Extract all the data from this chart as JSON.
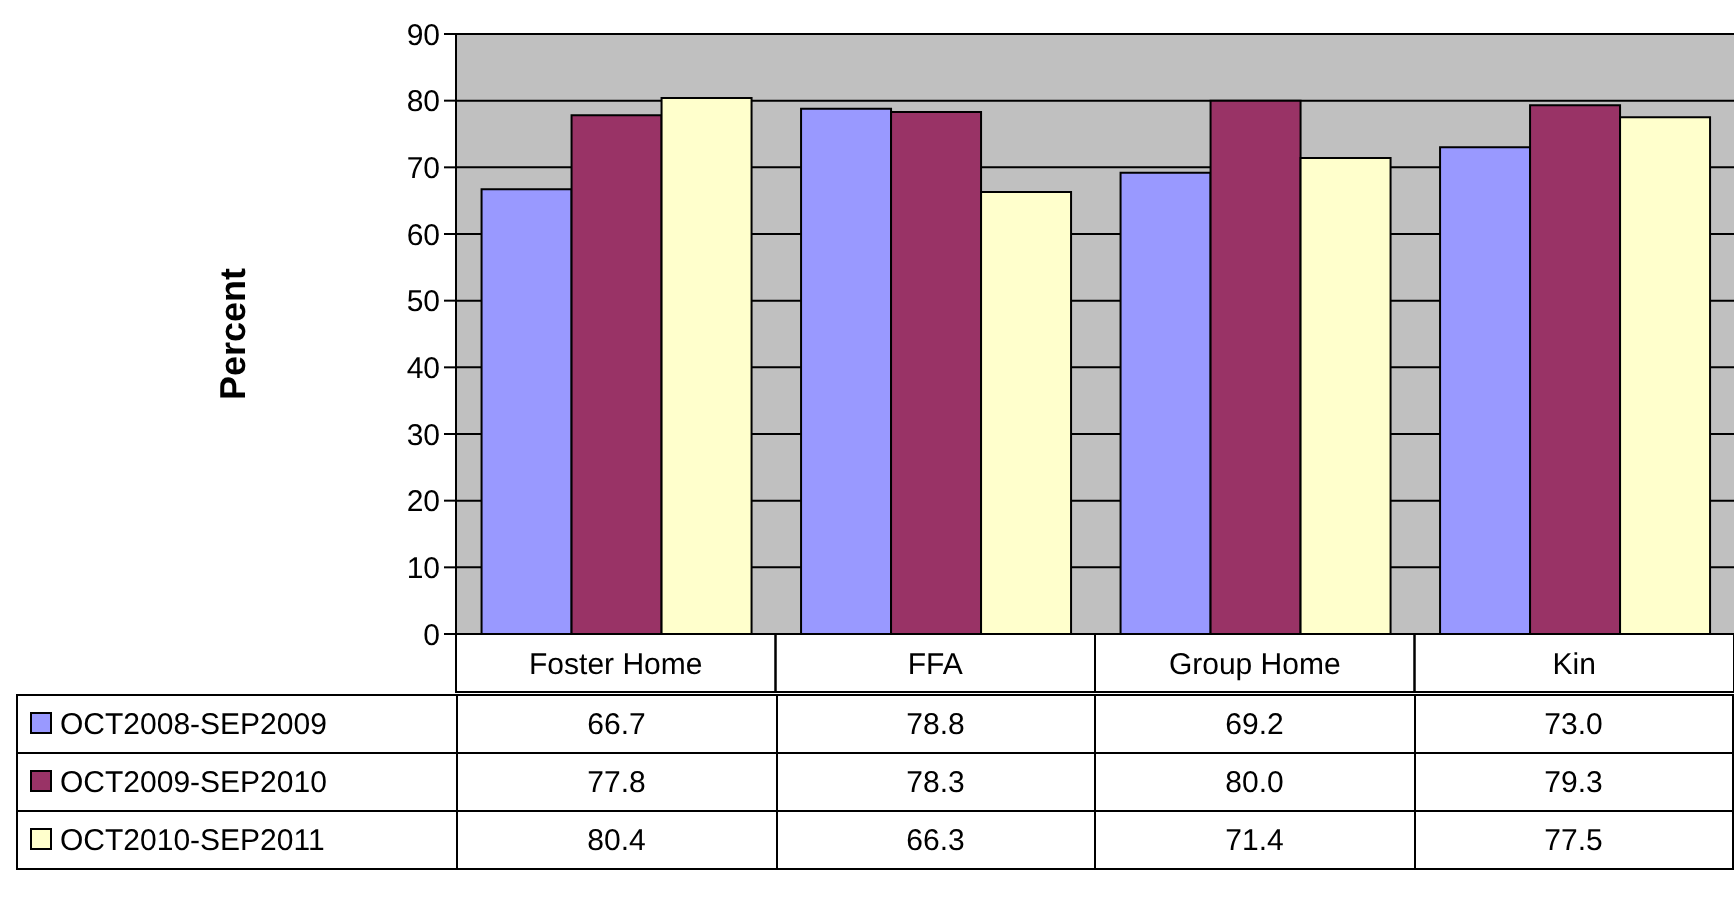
{
  "chart_data": {
    "type": "bar",
    "ylabel": "Percent",
    "categories": [
      "Foster Home",
      "FFA",
      "Group Home",
      "Kin"
    ],
    "series": [
      {
        "name": "OCT2008-SEP2009",
        "color": "#9999ff",
        "values": [
          66.7,
          78.8,
          69.2,
          73.0
        ],
        "value_labels": [
          "66.7",
          "78.8",
          "69.2",
          "73.0"
        ]
      },
      {
        "name": "OCT2009-SEP2010",
        "color": "#993366",
        "values": [
          77.8,
          78.3,
          80.0,
          79.3
        ],
        "value_labels": [
          "77.8",
          "78.3",
          "80.0",
          "79.3"
        ]
      },
      {
        "name": "OCT2010-SEP2011",
        "color": "#ffffcc",
        "values": [
          80.4,
          66.3,
          71.4,
          77.5
        ],
        "value_labels": [
          "80.4",
          "66.3",
          "71.4",
          "77.5"
        ]
      }
    ],
    "ylim": [
      0,
      90
    ],
    "yticks": [
      0,
      10,
      20,
      30,
      40,
      50,
      60,
      70,
      80,
      90
    ],
    "grid": "y",
    "legend": "bottom left"
  }
}
